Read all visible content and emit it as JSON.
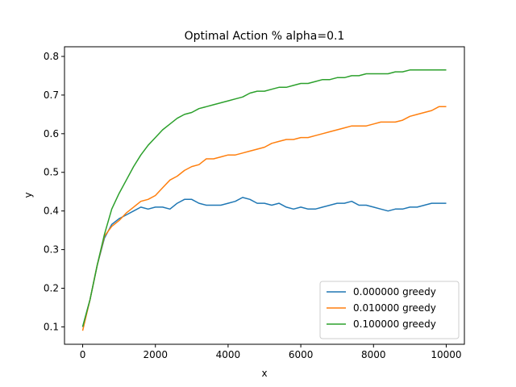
{
  "chart_data": {
    "type": "line",
    "title": "Optimal Action % alpha=0.1",
    "xlabel": "x",
    "ylabel": "y",
    "xlim": [
      -500,
      10500
    ],
    "ylim": [
      0.055,
      0.825
    ],
    "xticks": [
      0,
      2000,
      4000,
      6000,
      8000,
      10000
    ],
    "xtick_labels": [
      "0",
      "2000",
      "4000",
      "6000",
      "8000",
      "10000"
    ],
    "yticks": [
      0.1,
      0.2,
      0.3,
      0.4,
      0.5,
      0.6,
      0.7,
      0.8
    ],
    "ytick_labels": [
      "0.1",
      "0.2",
      "0.3",
      "0.4",
      "0.5",
      "0.6",
      "0.7",
      "0.8"
    ],
    "grid": false,
    "legend_position": "lower-right",
    "series": [
      {
        "name": "0.000000 greedy",
        "color": "#1f77b4",
        "x": [
          0,
          200,
          400,
          600,
          800,
          1000,
          1200,
          1400,
          1600,
          1800,
          2000,
          2200,
          2400,
          2600,
          2800,
          3000,
          3200,
          3400,
          3600,
          3800,
          4000,
          4200,
          4400,
          4600,
          4800,
          5000,
          5200,
          5400,
          5600,
          5800,
          6000,
          6200,
          6400,
          6600,
          6800,
          7000,
          7200,
          7400,
          7600,
          7800,
          8000,
          8200,
          8400,
          8600,
          8800,
          9000,
          9200,
          9400,
          9600,
          9800,
          10000
        ],
        "y": [
          0.1,
          0.17,
          0.26,
          0.33,
          0.365,
          0.38,
          0.39,
          0.4,
          0.41,
          0.405,
          0.41,
          0.41,
          0.405,
          0.42,
          0.43,
          0.43,
          0.42,
          0.415,
          0.415,
          0.415,
          0.42,
          0.425,
          0.435,
          0.43,
          0.42,
          0.42,
          0.415,
          0.42,
          0.41,
          0.405,
          0.41,
          0.405,
          0.405,
          0.41,
          0.415,
          0.42,
          0.42,
          0.425,
          0.415,
          0.415,
          0.41,
          0.405,
          0.4,
          0.405,
          0.405,
          0.41,
          0.41,
          0.415,
          0.42,
          0.42,
          0.42
        ]
      },
      {
        "name": "0.010000 greedy",
        "color": "#ff7f0e",
        "x": [
          0,
          200,
          400,
          600,
          800,
          1000,
          1200,
          1400,
          1600,
          1800,
          2000,
          2200,
          2400,
          2600,
          2800,
          3000,
          3200,
          3400,
          3600,
          3800,
          4000,
          4200,
          4400,
          4600,
          4800,
          5000,
          5200,
          5400,
          5600,
          5800,
          6000,
          6200,
          6400,
          6600,
          6800,
          7000,
          7200,
          7400,
          7600,
          7800,
          8000,
          8200,
          8400,
          8600,
          8800,
          9000,
          9200,
          9400,
          9600,
          9800,
          10000
        ],
        "y": [
          0.09,
          0.17,
          0.26,
          0.335,
          0.36,
          0.375,
          0.395,
          0.41,
          0.425,
          0.43,
          0.44,
          0.46,
          0.48,
          0.49,
          0.505,
          0.515,
          0.52,
          0.535,
          0.535,
          0.54,
          0.545,
          0.545,
          0.55,
          0.555,
          0.56,
          0.565,
          0.575,
          0.58,
          0.585,
          0.585,
          0.59,
          0.59,
          0.595,
          0.6,
          0.605,
          0.61,
          0.615,
          0.62,
          0.62,
          0.62,
          0.625,
          0.63,
          0.63,
          0.63,
          0.635,
          0.645,
          0.65,
          0.655,
          0.66,
          0.67,
          0.67
        ]
      },
      {
        "name": "0.100000 greedy",
        "color": "#2ca02c",
        "x": [
          0,
          200,
          400,
          600,
          800,
          1000,
          1200,
          1400,
          1600,
          1800,
          2000,
          2200,
          2400,
          2600,
          2800,
          3000,
          3200,
          3400,
          3600,
          3800,
          4000,
          4200,
          4400,
          4600,
          4800,
          5000,
          5200,
          5400,
          5600,
          5800,
          6000,
          6200,
          6400,
          6600,
          6800,
          7000,
          7200,
          7400,
          7600,
          7800,
          8000,
          8200,
          8400,
          8600,
          8800,
          9000,
          9200,
          9400,
          9600,
          9800,
          10000
        ],
        "y": [
          0.1,
          0.17,
          0.26,
          0.34,
          0.405,
          0.445,
          0.48,
          0.515,
          0.545,
          0.57,
          0.59,
          0.61,
          0.625,
          0.64,
          0.65,
          0.655,
          0.665,
          0.67,
          0.675,
          0.68,
          0.685,
          0.69,
          0.695,
          0.705,
          0.71,
          0.71,
          0.715,
          0.72,
          0.72,
          0.725,
          0.73,
          0.73,
          0.735,
          0.74,
          0.74,
          0.745,
          0.745,
          0.75,
          0.75,
          0.755,
          0.755,
          0.755,
          0.755,
          0.76,
          0.76,
          0.765,
          0.765,
          0.765,
          0.765,
          0.765,
          0.765
        ]
      }
    ]
  }
}
